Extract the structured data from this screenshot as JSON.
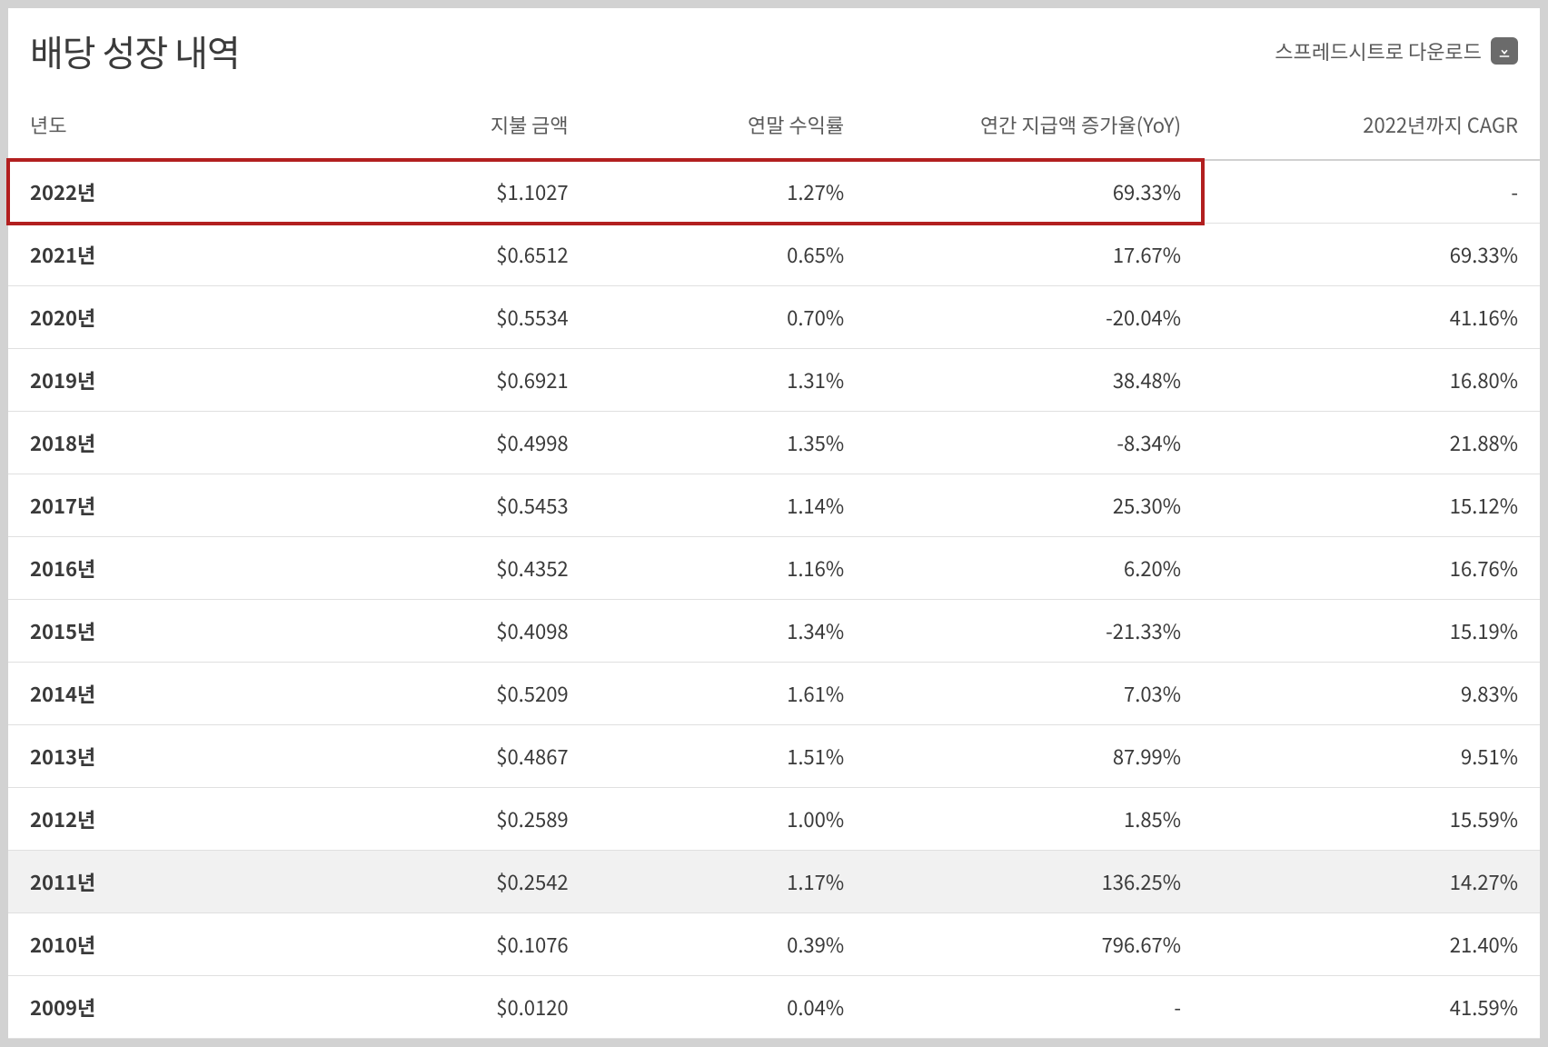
{
  "title": "배당 성장 내역",
  "download_label": "스프레드시트로 다운로드",
  "columns": [
    "년도",
    "지불 금액",
    "연말 수익률",
    "연간 지급액 증가율(YoY)",
    "2022년까지 CAGR"
  ],
  "rows": [
    {
      "year": "2022년",
      "payment": "$1.1027",
      "yield": "1.27%",
      "yoy": "69.33%",
      "cagr": "-"
    },
    {
      "year": "2021년",
      "payment": "$0.6512",
      "yield": "0.65%",
      "yoy": "17.67%",
      "cagr": "69.33%"
    },
    {
      "year": "2020년",
      "payment": "$0.5534",
      "yield": "0.70%",
      "yoy": "-20.04%",
      "cagr": "41.16%"
    },
    {
      "year": "2019년",
      "payment": "$0.6921",
      "yield": "1.31%",
      "yoy": "38.48%",
      "cagr": "16.80%"
    },
    {
      "year": "2018년",
      "payment": "$0.4998",
      "yield": "1.35%",
      "yoy": "-8.34%",
      "cagr": "21.88%"
    },
    {
      "year": "2017년",
      "payment": "$0.5453",
      "yield": "1.14%",
      "yoy": "25.30%",
      "cagr": "15.12%"
    },
    {
      "year": "2016년",
      "payment": "$0.4352",
      "yield": "1.16%",
      "yoy": "6.20%",
      "cagr": "16.76%"
    },
    {
      "year": "2015년",
      "payment": "$0.4098",
      "yield": "1.34%",
      "yoy": "-21.33%",
      "cagr": "15.19%"
    },
    {
      "year": "2014년",
      "payment": "$0.5209",
      "yield": "1.61%",
      "yoy": "7.03%",
      "cagr": "9.83%"
    },
    {
      "year": "2013년",
      "payment": "$0.4867",
      "yield": "1.51%",
      "yoy": "87.99%",
      "cagr": "9.51%"
    },
    {
      "year": "2012년",
      "payment": "$0.2589",
      "yield": "1.00%",
      "yoy": "1.85%",
      "cagr": "15.59%"
    },
    {
      "year": "2011년",
      "payment": "$0.2542",
      "yield": "1.17%",
      "yoy": "136.25%",
      "cagr": "14.27%",
      "hover": true
    },
    {
      "year": "2010년",
      "payment": "$0.1076",
      "yield": "0.39%",
      "yoy": "796.67%",
      "cagr": "21.40%"
    },
    {
      "year": "2009년",
      "payment": "$0.0120",
      "yield": "0.04%",
      "yoy": "-",
      "cagr": "41.59%"
    }
  ],
  "highlight": {
    "row_index": 0,
    "span_cols": 4,
    "border_color": "#b21f1f"
  },
  "styling": {
    "background_color": "#d2d2d2",
    "card_background": "#ffffff",
    "title_color": "#3a3a3a",
    "title_fontsize": 40,
    "header_text_color": "#5a5a5a",
    "header_fontsize": 22,
    "cell_text_color": "#3a3a3a",
    "cell_fontsize": 22,
    "header_border_color": "#d0d0d0",
    "row_border_color": "#e0e0e0",
    "hover_background": "#f1f1f1",
    "download_icon_bg": "#6b6b6b",
    "download_icon_fg": "#ffffff"
  }
}
